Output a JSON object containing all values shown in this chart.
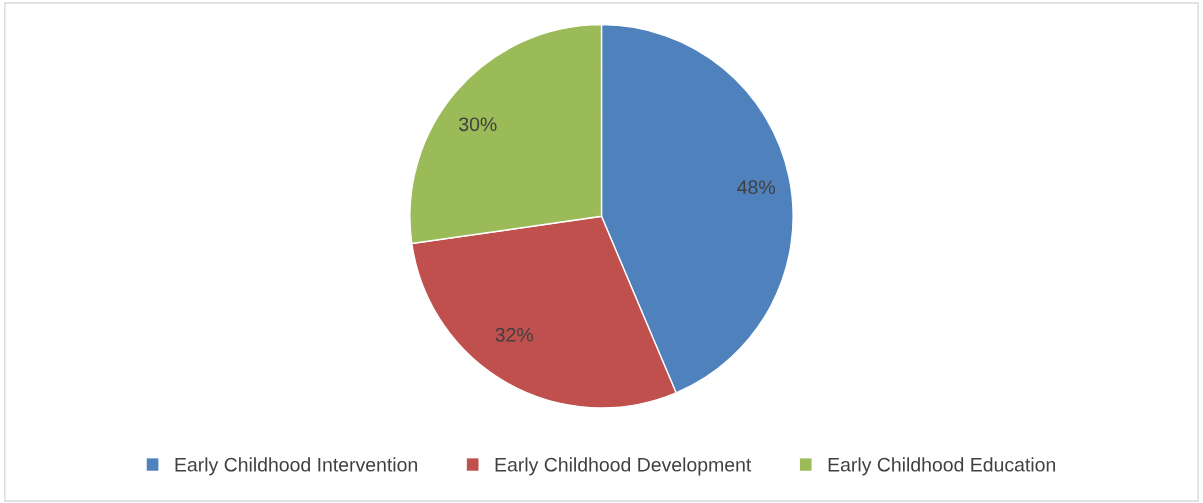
{
  "chart_data": {
    "type": "pie",
    "categories": [
      "Early Childhood Intervention",
      "Early Childhood Development",
      "Early Childhood Education"
    ],
    "values": [
      48,
      32,
      30
    ],
    "colors": [
      "#4f81bd",
      "#c0504d",
      "#9bbb59"
    ],
    "value_labels": [
      "48%",
      "32%",
      "30%"
    ],
    "legend": "bottom"
  }
}
